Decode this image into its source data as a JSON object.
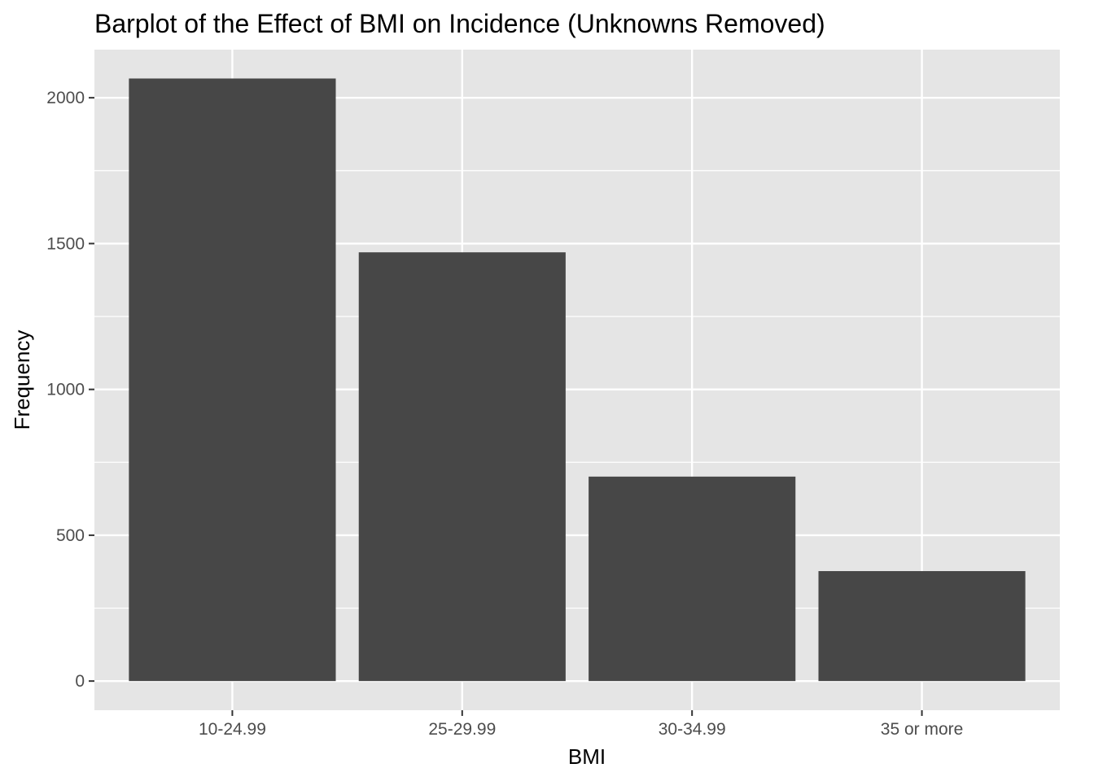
{
  "chart_data": {
    "type": "bar",
    "title": "Barplot of the Effect of BMI on Incidence (Unknowns Removed)",
    "xlabel": "BMI",
    "ylabel": "Frequency",
    "categories": [
      "10-24.99",
      "25-29.99",
      "30-34.99",
      "35 or more"
    ],
    "values": [
      2066,
      1470,
      701,
      377
    ],
    "ylim": [
      -100,
      2165
    ],
    "yticks": [
      0,
      500,
      1000,
      1500,
      2000
    ],
    "grid": true,
    "legend": "none",
    "colors": {
      "bar": "#474747",
      "panel": "#e5e5e5",
      "grid": "#ffffff",
      "tick_text": "#4d4d4d",
      "title_text": "#000000"
    }
  }
}
